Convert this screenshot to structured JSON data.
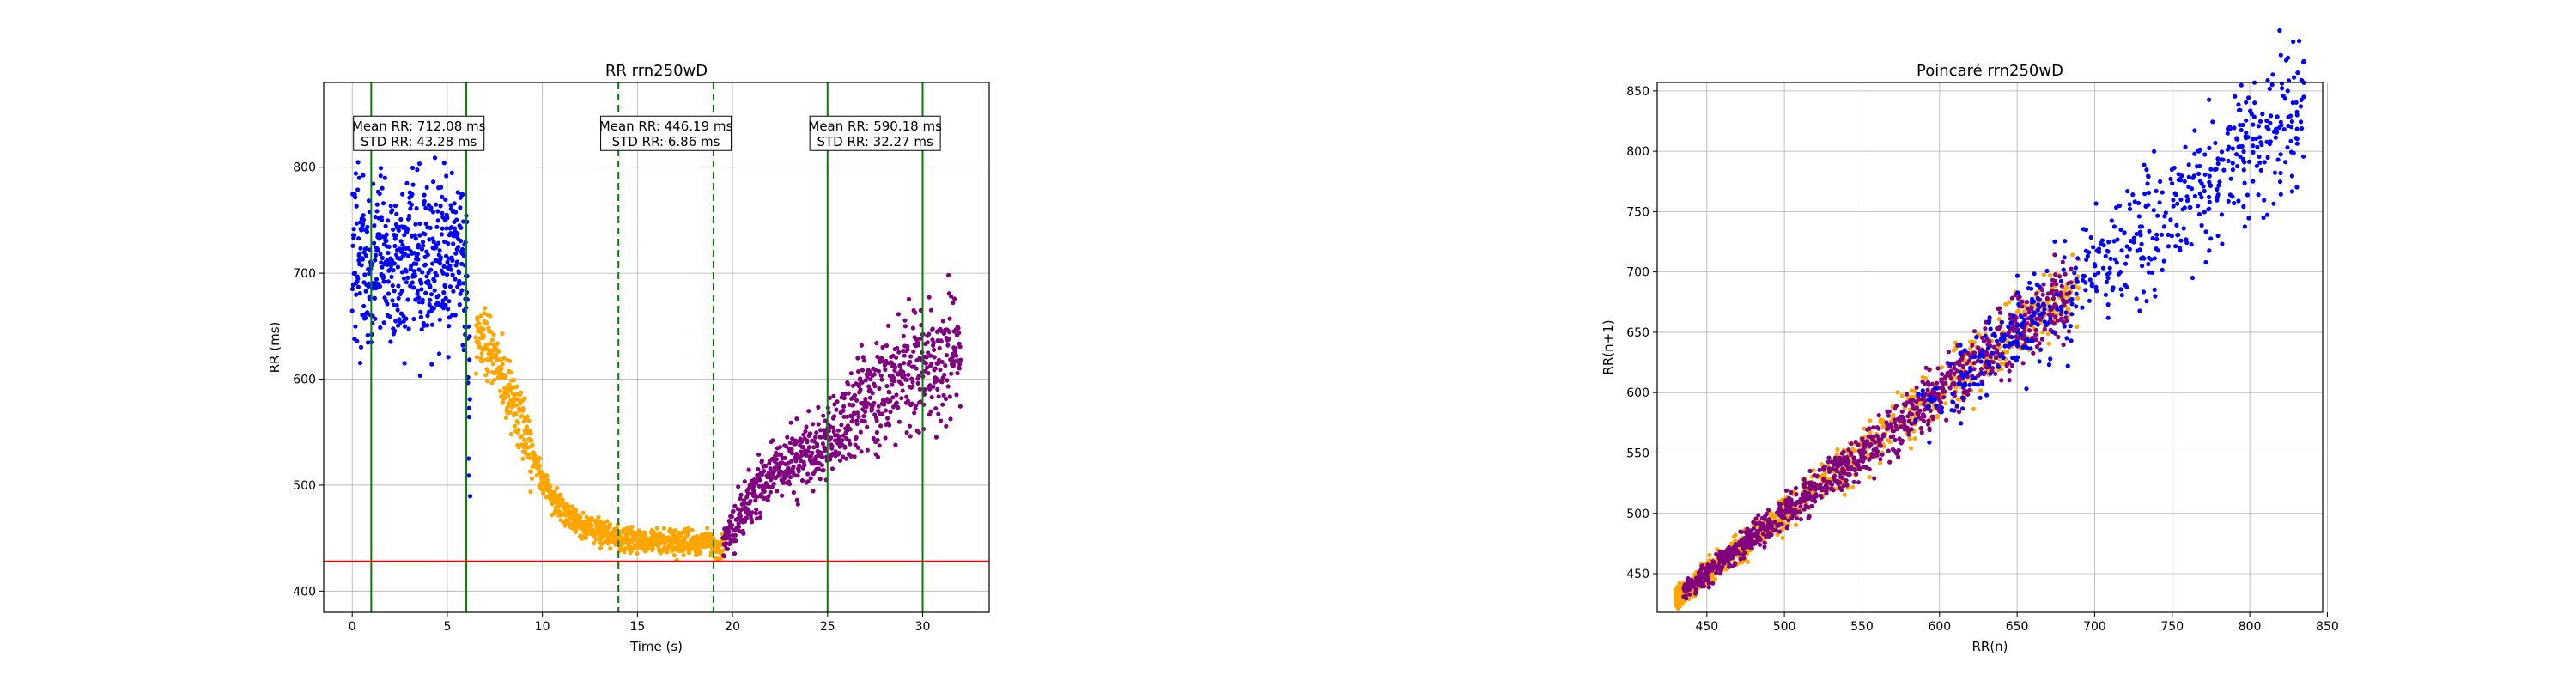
{
  "chart_data": [
    {
      "type": "scatter",
      "title": "RR rrn250wD",
      "xlabel": "Time (s)",
      "ylabel": "RR (ms)",
      "xlim": [
        -1.5,
        33.5
      ],
      "ylim": [
        380,
        880
      ],
      "xticks": [
        0,
        5,
        10,
        15,
        20,
        25,
        30
      ],
      "yticks": [
        400,
        500,
        600,
        700,
        800
      ],
      "grid": true,
      "colors": {
        "baseline": "#0000ff",
        "transition": "#ffa500",
        "recovery": "#800080",
        "solid_line": "#008000",
        "dashed_line": "#008000",
        "threshold": "#ff0000"
      },
      "series": [
        {
          "color": "#0000ff",
          "x_range": [
            0,
            6.2
          ],
          "values": [
            [
              0.0,
              720
            ],
            [
              0.5,
              705
            ],
            [
              1.0,
              690
            ],
            [
              1.5,
              725
            ],
            [
              2.0,
              715
            ],
            [
              2.5,
              700
            ],
            [
              3.0,
              730
            ],
            [
              3.5,
              710
            ],
            [
              4.0,
              705
            ],
            [
              4.5,
              720
            ],
            [
              5.0,
              715
            ],
            [
              5.5,
              725
            ],
            [
              6.0,
              690
            ],
            [
              6.2,
              560
            ]
          ]
        },
        {
          "color": "#ffa500",
          "x_range": [
            6.5,
            19.5
          ],
          "values": [
            [
              6.5,
              640
            ],
            [
              7.0,
              640
            ],
            [
              7.5,
              625
            ],
            [
              8.0,
              600
            ],
            [
              8.5,
              575
            ],
            [
              9.0,
              550
            ],
            [
              9.5,
              525
            ],
            [
              10.0,
              505
            ],
            [
              10.5,
              490
            ],
            [
              11.0,
              478
            ],
            [
              12.0,
              462
            ],
            [
              13.0,
              455
            ],
            [
              14.0,
              450
            ],
            [
              15.0,
              448
            ],
            [
              16.0,
              447
            ],
            [
              17.0,
              446
            ],
            [
              18.0,
              446
            ],
            [
              19.0,
              444
            ],
            [
              19.5,
              442
            ]
          ]
        },
        {
          "color": "#800080",
          "x_range": [
            19.5,
            32
          ],
          "values": [
            [
              19.5,
              445
            ],
            [
              20.0,
              460
            ],
            [
              21.0,
              490
            ],
            [
              22.0,
              510
            ],
            [
              23.0,
              520
            ],
            [
              24.0,
              530
            ],
            [
              25.0,
              545
            ],
            [
              26.0,
              560
            ],
            [
              27.0,
              575
            ],
            [
              28.0,
              590
            ],
            [
              29.0,
              600
            ],
            [
              30.0,
              615
            ],
            [
              31.0,
              625
            ],
            [
              32.0,
              610
            ]
          ]
        }
      ],
      "vlines_solid": [
        1,
        6,
        25,
        30
      ],
      "vlines_dashed": [
        14,
        19
      ],
      "hline": 428,
      "annotations": [
        {
          "line1": "Mean RR: 712.08 ms",
          "line2": "STD RR: 43.28 ms",
          "x": 3.5,
          "y": 832
        },
        {
          "line1": "Mean RR: 446.19 ms",
          "line2": "STD RR: 6.86 ms",
          "x": 16.5,
          "y": 832
        },
        {
          "line1": "Mean RR: 590.18 ms",
          "line2": "STD RR: 32.27 ms",
          "x": 27.5,
          "y": 832
        }
      ]
    },
    {
      "type": "scatter",
      "title": "Poincaré rrn250wD",
      "xlabel": "RR(n)",
      "ylabel": "RR(n+1)",
      "xlim": [
        418,
        847
      ],
      "ylim": [
        418,
        857
      ],
      "xticks": [
        450,
        500,
        550,
        600,
        650,
        700,
        750,
        800,
        850
      ],
      "yticks": [
        450,
        500,
        550,
        600,
        650,
        700,
        750,
        800,
        850
      ],
      "grid": true,
      "colors": {
        "baseline": "#0000ff",
        "transition": "#ffa500",
        "recovery": "#800080"
      },
      "series": [
        {
          "color": "#ffa500",
          "range": [
            430,
            690
          ]
        },
        {
          "color": "#800080",
          "range": [
            435,
            685
          ]
        },
        {
          "color": "#0000ff",
          "range": [
            580,
            835
          ]
        }
      ]
    }
  ]
}
